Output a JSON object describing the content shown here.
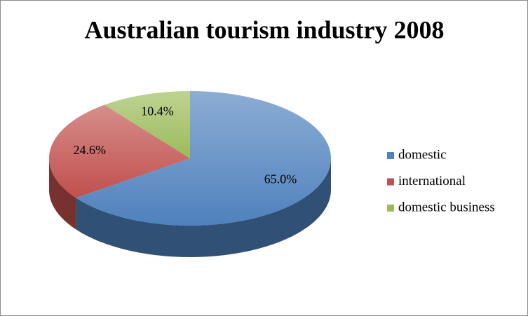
{
  "chart_data": {
    "type": "pie",
    "title": "Australian tourism industry 2008",
    "categories": [
      "domestic",
      "international",
      "domestic business"
    ],
    "values": [
      65.0,
      24.6,
      10.4
    ],
    "value_labels": [
      "65.0%",
      "24.6%",
      "10.4%"
    ],
    "colors": [
      "#4f81bd",
      "#c0504d",
      "#9bbb59"
    ],
    "legend": "right"
  }
}
